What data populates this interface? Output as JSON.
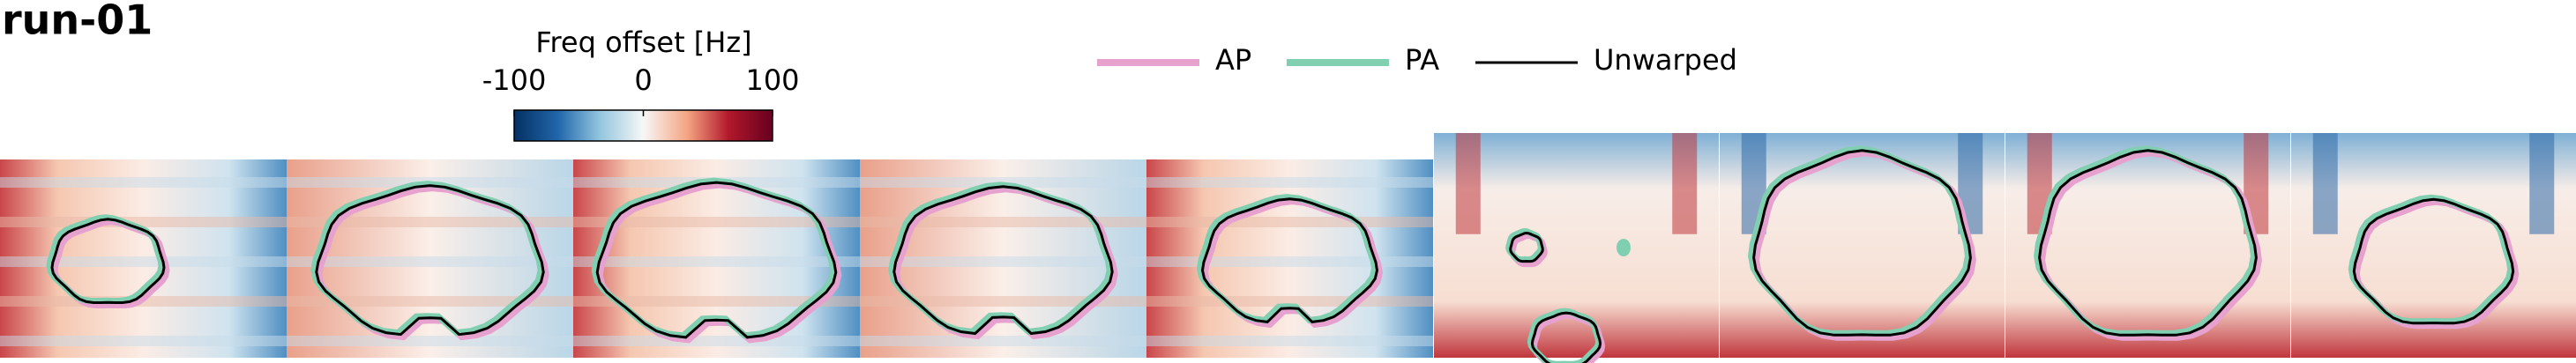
{
  "title": "run-01",
  "colorbar": {
    "label": "Freq offset [Hz]",
    "lim": [
      -100,
      100
    ],
    "ticks": [
      -100,
      0,
      100
    ]
  },
  "legend": [
    {
      "name": "AP",
      "color": "#e7a1cf"
    },
    {
      "name": "PA",
      "color": "#7fcfb0"
    },
    {
      "name": "Unwarped",
      "color": "#000000"
    }
  ]
}
